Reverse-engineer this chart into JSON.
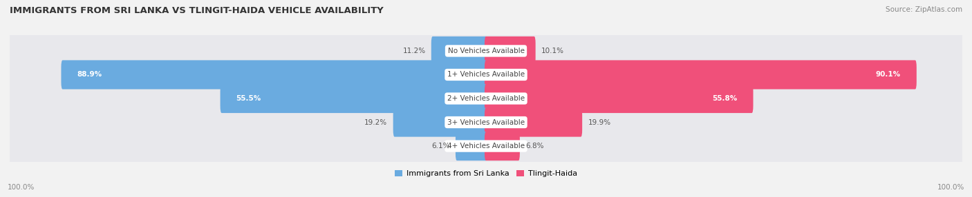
{
  "title": "IMMIGRANTS FROM SRI LANKA VS TLINGIT-HAIDA VEHICLE AVAILABILITY",
  "source": "Source: ZipAtlas.com",
  "categories": [
    "No Vehicles Available",
    "1+ Vehicles Available",
    "2+ Vehicles Available",
    "3+ Vehicles Available",
    "4+ Vehicles Available"
  ],
  "sri_lanka_values": [
    11.2,
    88.9,
    55.5,
    19.2,
    6.1
  ],
  "tlingit_values": [
    10.1,
    90.1,
    55.8,
    19.9,
    6.8
  ],
  "sri_lanka_color": "#6aabe0",
  "tlingit_color": "#f0507a",
  "background_color": "#f2f2f2",
  "row_bg_color": "#e8e8ec",
  "row_bg_color_alt": "#dddde4",
  "title_color": "#333333",
  "source_color": "#888888",
  "legend_sri_lanka": "Immigrants from Sri Lanka",
  "legend_tlingit": "Tlingit-Haida",
  "x_axis_label_left": "100.0%",
  "x_axis_label_right": "100.0%"
}
